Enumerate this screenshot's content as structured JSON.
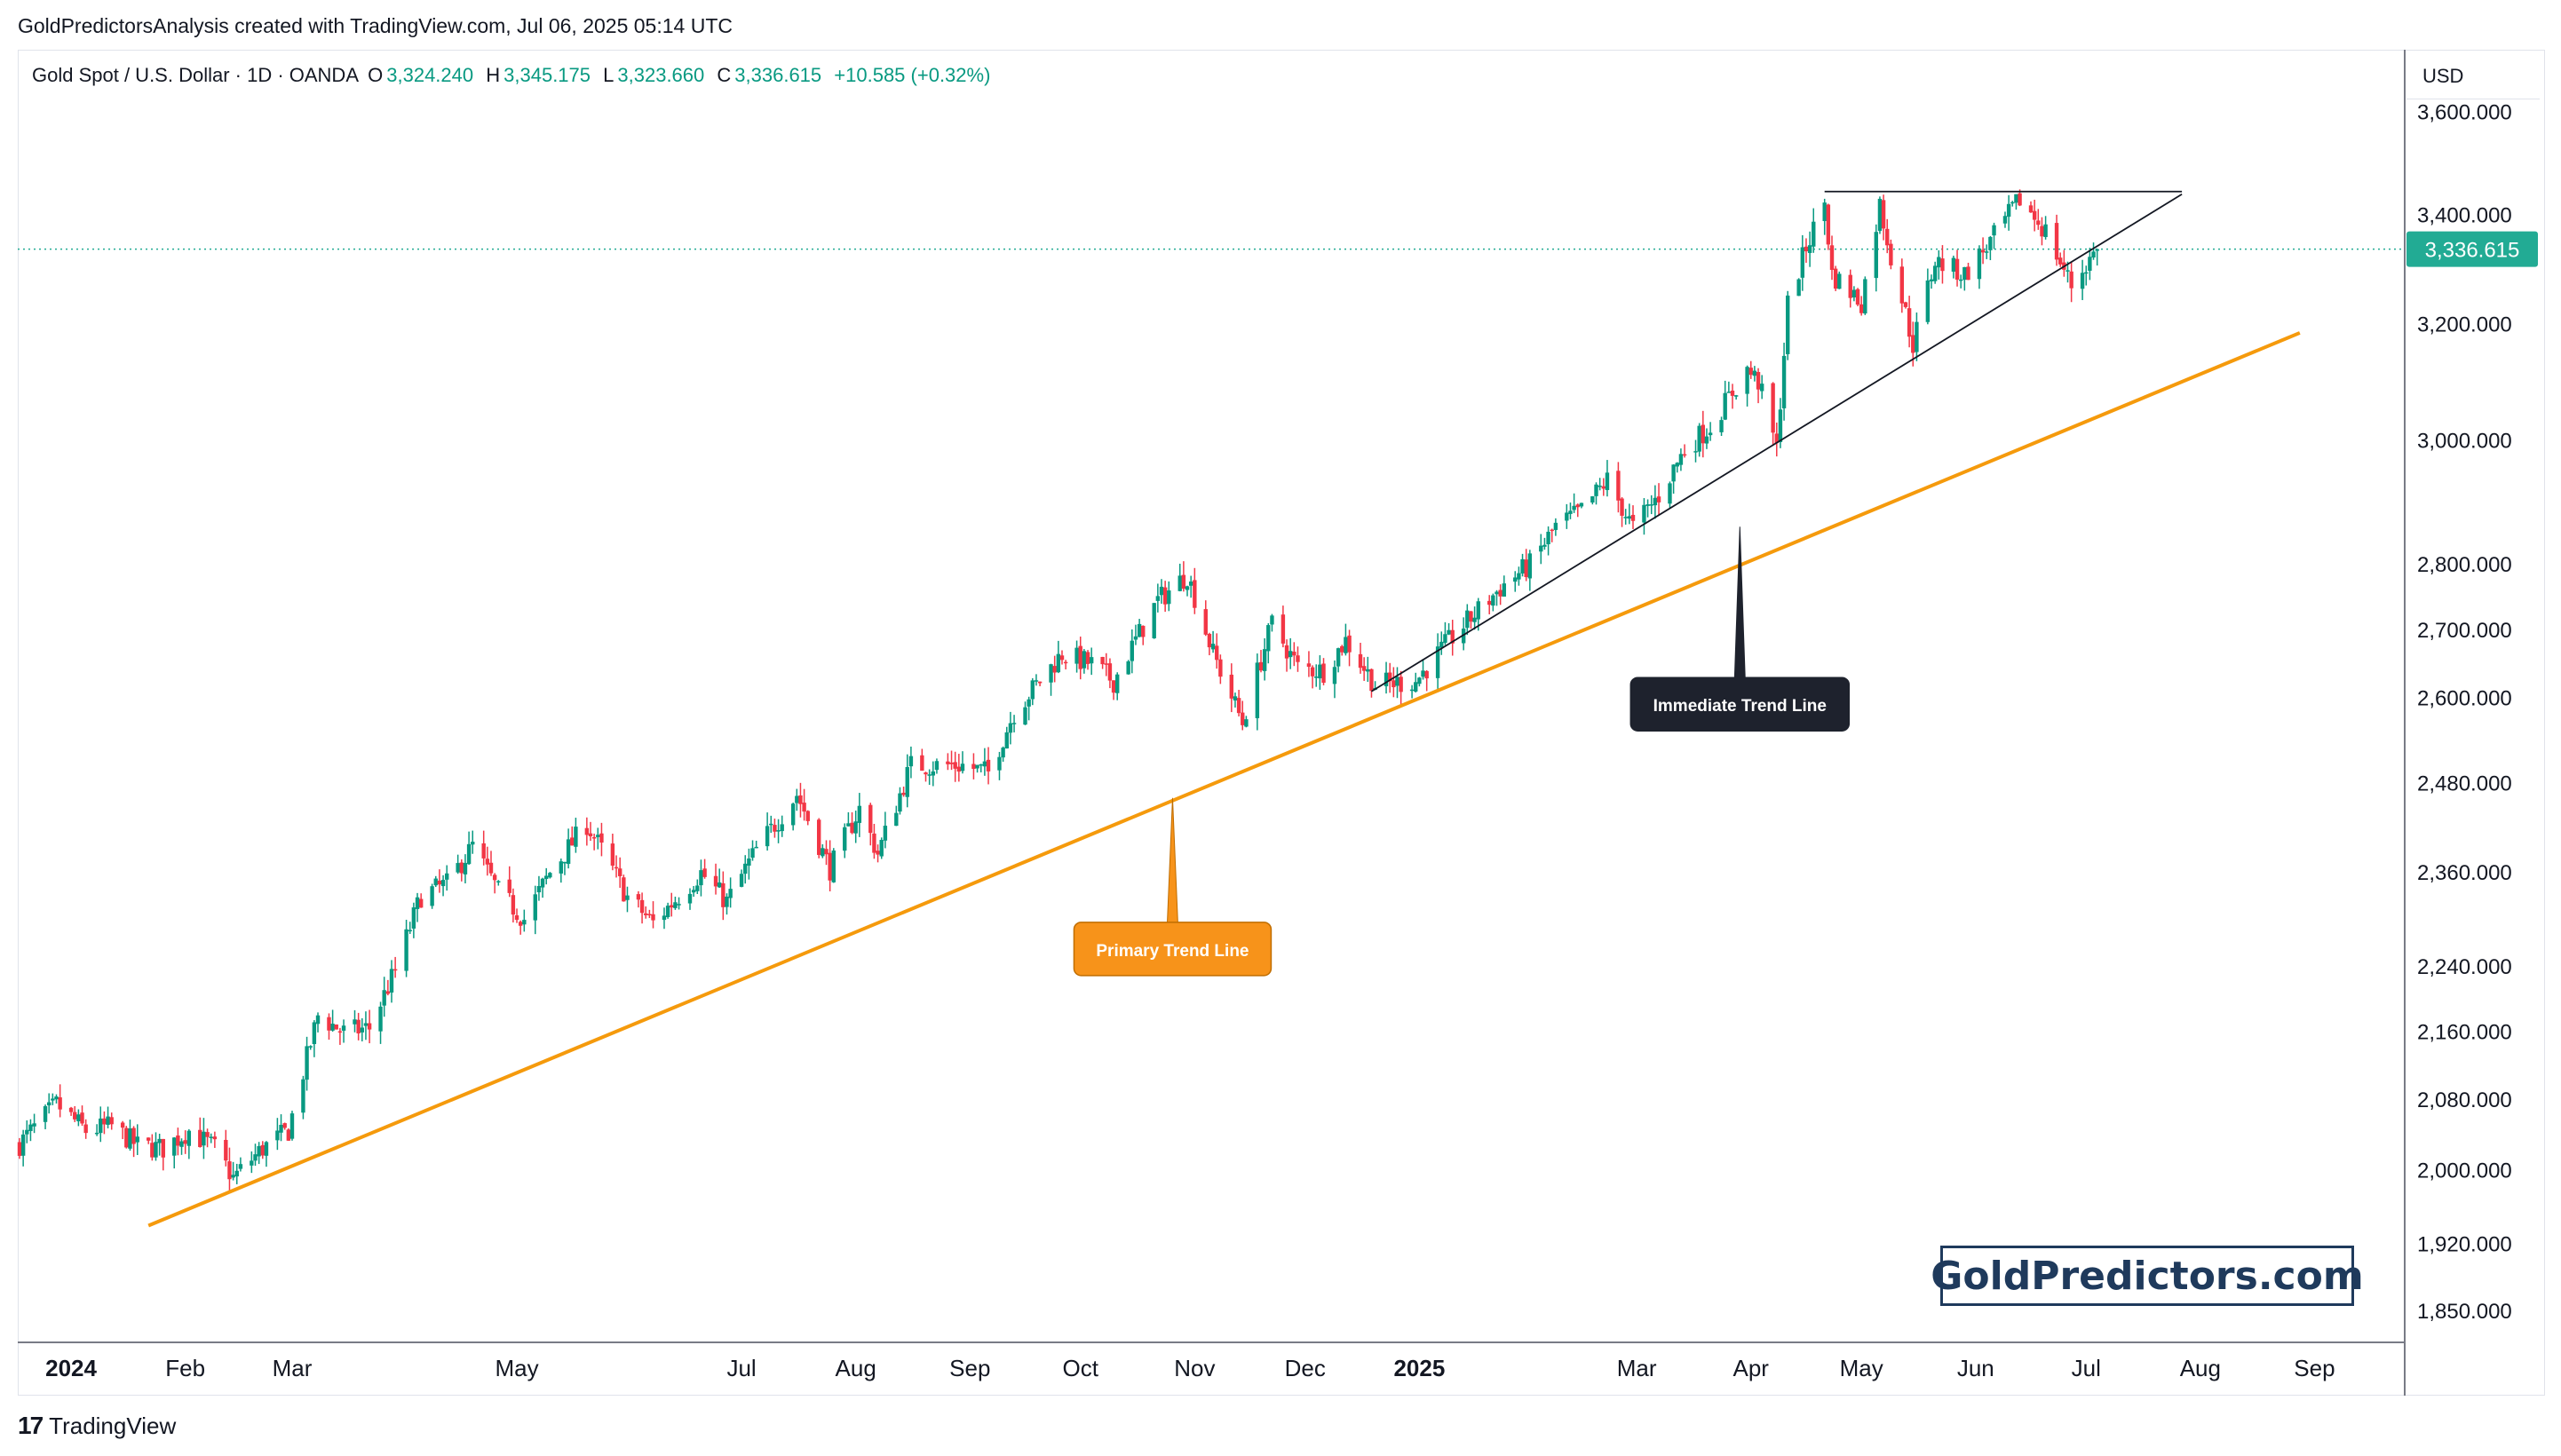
{
  "header": {
    "attribution": "GoldPredictorsAnalysis created with TradingView.com, Jul 06, 2025 05:14 UTC"
  },
  "legend": {
    "symbol": "Gold Spot / U.S. Dollar · 1D · OANDA",
    "open_label": "O",
    "open": "3,324.240",
    "high_label": "H",
    "high": "3,345.175",
    "low_label": "L",
    "low": "3,323.660",
    "close_label": "C",
    "close": "3,336.615",
    "change": "+10.585 (+0.32%)"
  },
  "axis": {
    "currency": "USD",
    "current_price": "3,336.615"
  },
  "brand": {
    "watermark": "GoldPredictors.com"
  },
  "footer": {
    "logo_text": "TradingView"
  },
  "colors": {
    "up": "#089981",
    "down": "#f23645",
    "primary_trend": "#f59a0c",
    "immediate_trend": "#131722",
    "price_label_bg": "#22ab94",
    "callout_dark": "#1e222d",
    "callout_orange": "#f7931a"
  },
  "chart_data": {
    "type": "candlestick",
    "symbol": "Gold Spot / U.S. Dollar",
    "interval": "1D",
    "scale": "log",
    "ylim": [
      1820,
      3720
    ],
    "xlim": [
      "2023-12-18",
      "2025-09-25"
    ],
    "y_ticks": [
      {
        "v": 1850,
        "label": "1,850.000"
      },
      {
        "v": 1920,
        "label": "1,920.000"
      },
      {
        "v": 2000,
        "label": "2,000.000"
      },
      {
        "v": 2080,
        "label": "2,080.000"
      },
      {
        "v": 2160,
        "label": "2,160.000"
      },
      {
        "v": 2240,
        "label": "2,240.000"
      },
      {
        "v": 2360,
        "label": "2,360.000"
      },
      {
        "v": 2480,
        "label": "2,480.000"
      },
      {
        "v": 2600,
        "label": "2,600.000"
      },
      {
        "v": 2700,
        "label": "2,700.000"
      },
      {
        "v": 2800,
        "label": "2,800.000"
      },
      {
        "v": 3000,
        "label": "3,000.000"
      },
      {
        "v": 3200,
        "label": "3,200.000"
      },
      {
        "v": 3400,
        "label": "3,400.000"
      },
      {
        "v": 3600,
        "label": "3,600.000"
      }
    ],
    "x_ticks": [
      {
        "d": "2024-01-01",
        "label": "2024",
        "bold": true
      },
      {
        "d": "2024-02-01",
        "label": "Feb",
        "bold": false
      },
      {
        "d": "2024-03-01",
        "label": "Mar",
        "bold": false
      },
      {
        "d": "2024-05-01",
        "label": "May",
        "bold": false
      },
      {
        "d": "2024-07-01",
        "label": "Jul",
        "bold": false
      },
      {
        "d": "2024-08-01",
        "label": "Aug",
        "bold": false
      },
      {
        "d": "2024-09-01",
        "label": "Sep",
        "bold": false
      },
      {
        "d": "2024-10-01",
        "label": "Oct",
        "bold": false
      },
      {
        "d": "2024-11-01",
        "label": "Nov",
        "bold": false
      },
      {
        "d": "2024-12-01",
        "label": "Dec",
        "bold": false
      },
      {
        "d": "2025-01-01",
        "label": "2025",
        "bold": true
      },
      {
        "d": "2025-03-01",
        "label": "Mar",
        "bold": false
      },
      {
        "d": "2025-04-01",
        "label": "Apr",
        "bold": false
      },
      {
        "d": "2025-05-01",
        "label": "May",
        "bold": false
      },
      {
        "d": "2025-06-01",
        "label": "Jun",
        "bold": false
      },
      {
        "d": "2025-07-01",
        "label": "Jul",
        "bold": false
      },
      {
        "d": "2025-08-01",
        "label": "Aug",
        "bold": false
      },
      {
        "d": "2025-09-01",
        "label": "Sep",
        "bold": false
      }
    ],
    "price_path": [
      [
        "2023-12-18",
        2030
      ],
      [
        "2023-12-28",
        2075
      ],
      [
        "2024-01-05",
        2045
      ],
      [
        "2024-01-12",
        2050
      ],
      [
        "2024-01-19",
        2028
      ],
      [
        "2024-01-26",
        2025
      ],
      [
        "2024-02-02",
        2045
      ],
      [
        "2024-02-09",
        2025
      ],
      [
        "2024-02-14",
        1992
      ],
      [
        "2024-02-22",
        2025
      ],
      [
        "2024-02-29",
        2045
      ],
      [
        "2024-03-08",
        2180
      ],
      [
        "2024-03-15",
        2160
      ],
      [
        "2024-03-22",
        2165
      ],
      [
        "2024-03-29",
        2235
      ],
      [
        "2024-04-05",
        2330
      ],
      [
        "2024-04-12",
        2345
      ],
      [
        "2024-04-19",
        2395
      ],
      [
        "2024-04-26",
        2335
      ],
      [
        "2024-05-03",
        2300
      ],
      [
        "2024-05-10",
        2360
      ],
      [
        "2024-05-20",
        2425
      ],
      [
        "2024-05-31",
        2328
      ],
      [
        "2024-06-07",
        2295
      ],
      [
        "2024-06-20",
        2360
      ],
      [
        "2024-06-27",
        2322
      ],
      [
        "2024-07-05",
        2390
      ],
      [
        "2024-07-16",
        2465
      ],
      [
        "2024-07-25",
        2365
      ],
      [
        "2024-08-02",
        2445
      ],
      [
        "2024-08-07",
        2385
      ],
      [
        "2024-08-16",
        2505
      ],
      [
        "2024-08-30",
        2505
      ],
      [
        "2024-09-06",
        2495
      ],
      [
        "2024-09-13",
        2580
      ],
      [
        "2024-09-26",
        2665
      ],
      [
        "2024-10-04",
        2650
      ],
      [
        "2024-10-10",
        2625
      ],
      [
        "2024-10-22",
        2745
      ],
      [
        "2024-10-30",
        2785
      ],
      [
        "2024-11-06",
        2665
      ],
      [
        "2024-11-14",
        2565
      ],
      [
        "2024-11-22",
        2710
      ],
      [
        "2024-11-29",
        2645
      ],
      [
        "2024-12-06",
        2640
      ],
      [
        "2024-12-12",
        2685
      ],
      [
        "2024-12-20",
        2620
      ],
      [
        "2024-12-31",
        2625
      ],
      [
        "2025-01-10",
        2690
      ],
      [
        "2025-01-24",
        2770
      ],
      [
        "2025-01-31",
        2800
      ],
      [
        "2025-02-07",
        2860
      ],
      [
        "2025-02-14",
        2885
      ],
      [
        "2025-02-21",
        2935
      ],
      [
        "2025-02-28",
        2858
      ],
      [
        "2025-03-07",
        2910
      ],
      [
        "2025-03-14",
        2985
      ],
      [
        "2025-03-21",
        3025
      ],
      [
        "2025-03-31",
        3120
      ],
      [
        "2025-04-03",
        3100
      ],
      [
        "2025-04-08",
        2985
      ],
      [
        "2025-04-11",
        3235
      ],
      [
        "2025-04-16",
        3340
      ],
      [
        "2025-04-21",
        3425
      ],
      [
        "2025-04-23",
        3290
      ],
      [
        "2025-05-01",
        3240
      ],
      [
        "2025-05-06",
        3420
      ],
      [
        "2025-05-09",
        3325
      ],
      [
        "2025-05-15",
        3165
      ],
      [
        "2025-05-21",
        3315
      ],
      [
        "2025-05-29",
        3290
      ],
      [
        "2025-06-05",
        3350
      ],
      [
        "2025-06-13",
        3430
      ],
      [
        "2025-06-20",
        3370
      ],
      [
        "2025-06-27",
        3270
      ],
      [
        "2025-07-04",
        3336.615
      ]
    ],
    "last_close": 3336.615,
    "trendlines": [
      {
        "name": "primary",
        "label": "Primary Trend Line",
        "from": [
          "2024-01-22",
          1940
        ],
        "to": [
          "2025-08-28",
          3185
        ]
      },
      {
        "name": "immediate",
        "label": "Immediate Trend Line",
        "from": [
          "2024-12-19",
          2610
        ],
        "to": [
          "2025-07-27",
          3440
        ]
      },
      {
        "name": "resistance",
        "label": "",
        "from": [
          "2025-04-21",
          3445
        ],
        "to": [
          "2025-07-27",
          3445
        ]
      }
    ],
    "annotations": [
      {
        "text": "Primary Trend Line",
        "style": "orange",
        "anchor": [
          "2024-10-26",
          2460
        ]
      },
      {
        "text": "Immediate Trend Line",
        "style": "dark",
        "anchor": [
          "2025-03-29",
          2860
        ]
      }
    ]
  }
}
